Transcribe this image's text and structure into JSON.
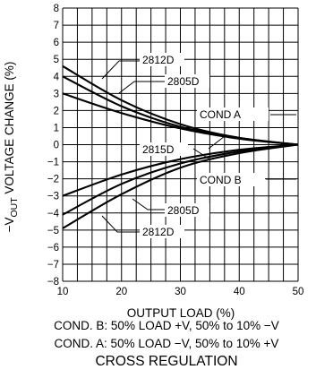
{
  "chart_data": {
    "type": "line",
    "xlabel": "OUTPUT LOAD (%)",
    "ylabel_parts": [
      "−V",
      "OUT",
      " VOLTAGE CHANGE (%)"
    ],
    "xlim": [
      10,
      50
    ],
    "ylim": [
      -8,
      8
    ],
    "x_ticks": [
      "10",
      "20",
      "30",
      "40",
      "50"
    ],
    "y_ticks": [
      "8",
      "7",
      "6",
      "5",
      "4",
      "3",
      "2",
      "1",
      "0",
      "−1",
      "−2",
      "−3",
      "−4",
      "−5",
      "−6",
      "−7",
      "−8"
    ],
    "grid": true,
    "series": [
      {
        "name": "2812D",
        "condition": "COND A",
        "x": [
          10,
          20,
          30,
          40,
          50
        ],
        "y": [
          4.6,
          2.6,
          1.2,
          0.4,
          0
        ]
      },
      {
        "name": "2805D",
        "condition": "COND A",
        "x": [
          10,
          20,
          30,
          40,
          50
        ],
        "y": [
          4.0,
          2.25,
          1.05,
          0.4,
          0
        ]
      },
      {
        "name": "2815D",
        "condition": "COND A",
        "x": [
          10,
          20,
          30,
          40,
          50
        ],
        "y": [
          3.0,
          1.85,
          0.95,
          0.35,
          0
        ]
      },
      {
        "name": "2815D",
        "condition": "COND B",
        "x": [
          10,
          20,
          30,
          40,
          50
        ],
        "y": [
          -3.0,
          -1.75,
          -0.85,
          -0.3,
          0
        ]
      },
      {
        "name": "2805D",
        "condition": "COND B",
        "x": [
          10,
          20,
          30,
          40,
          50
        ],
        "y": [
          -4.1,
          -2.3,
          -1.1,
          -0.4,
          0
        ]
      },
      {
        "name": "2812D",
        "condition": "COND B",
        "x": [
          10,
          20,
          30,
          40,
          50
        ],
        "y": [
          -4.9,
          -2.9,
          -1.35,
          -0.5,
          0
        ]
      }
    ],
    "annotations": [
      "2812D",
      "2805D",
      "COND A",
      "2815D",
      "COND B",
      "2805D",
      "2812D"
    ]
  },
  "notes": {
    "cond_b": "COND. B: 50% LOAD +V, 50% to 10% −V",
    "cond_a": "COND. A: 50% LOAD −V, 50% to 10% +V"
  },
  "caption": "CROSS REGULATION"
}
